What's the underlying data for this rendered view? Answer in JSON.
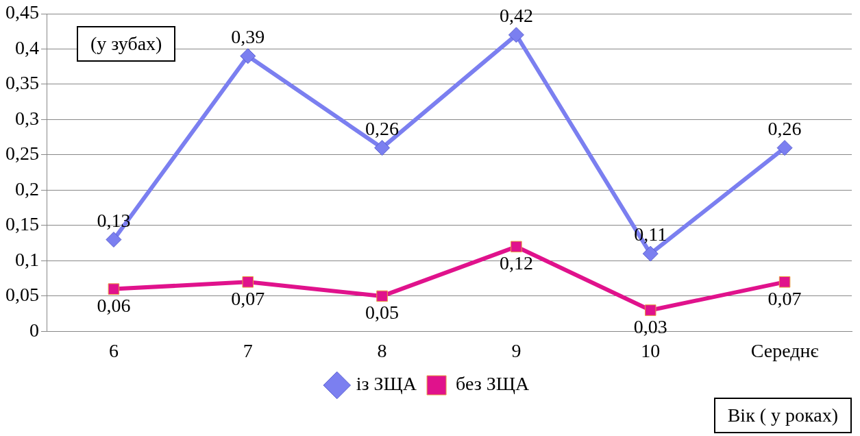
{
  "chart_data": {
    "type": "line",
    "ylabel": "(у зубах)",
    "xlabel": "Вік ( у роках)",
    "categories": [
      "6",
      "7",
      "8",
      "9",
      "10",
      "Середнє"
    ],
    "series": [
      {
        "name": "із ЗЩА",
        "color": "#7b7ff0",
        "marker": "diamond",
        "values": [
          0.13,
          0.39,
          0.26,
          0.42,
          0.11,
          0.26
        ],
        "value_labels": [
          "0,13",
          "0,39",
          "0,26",
          "0,42",
          "0,11",
          "0,26"
        ]
      },
      {
        "name": "без ЗЩА",
        "color": "#e0128c",
        "marker": "square",
        "values": [
          0.06,
          0.07,
          0.05,
          0.12,
          0.03,
          0.07
        ],
        "value_labels": [
          "0,06",
          "0,07",
          "0,05",
          "0,12",
          "0,03",
          "0,07"
        ]
      }
    ],
    "ylim": [
      0,
      0.45
    ],
    "yticks": [
      {
        "value": 0,
        "label": "0"
      },
      {
        "value": 0.05,
        "label": "0,05"
      },
      {
        "value": 0.1,
        "label": "0,1"
      },
      {
        "value": 0.15,
        "label": "0,15"
      },
      {
        "value": 0.2,
        "label": "0,2"
      },
      {
        "value": 0.25,
        "label": "0,25"
      },
      {
        "value": 0.3,
        "label": "0,3"
      },
      {
        "value": 0.35,
        "label": "0,35"
      },
      {
        "value": 0.4,
        "label": "0,4"
      },
      {
        "value": 0.45,
        "label": "0,45"
      }
    ],
    "grid": "y",
    "legend": "bottom",
    "line_style": "solid"
  }
}
